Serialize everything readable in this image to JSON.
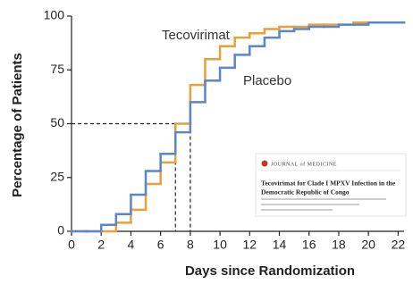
{
  "chart_data": {
    "type": "step",
    "y_label": "Percentage of Patients",
    "x_label": "Days since Randomization",
    "x": [
      0,
      1,
      2,
      3,
      4,
      5,
      6,
      7,
      8,
      9,
      10,
      11,
      12,
      13,
      14,
      15,
      16,
      17,
      18,
      19,
      20,
      21,
      22
    ],
    "series": [
      {
        "name": "Tecovirimat",
        "color": "#e8a03a",
        "values": [
          0,
          0,
          0,
          4,
          10,
          22,
          32,
          50,
          68,
          80,
          86,
          90,
          92,
          94,
          95,
          95,
          96,
          96,
          96,
          97,
          97,
          97,
          97
        ]
      },
      {
        "name": "Placebo",
        "color": "#5b86c9",
        "values": [
          0,
          0,
          3,
          8,
          17,
          28,
          36,
          46,
          60,
          70,
          76,
          82,
          86,
          90,
          93,
          94,
          95,
          95,
          96,
          96,
          97,
          97,
          97
        ]
      }
    ],
    "xlim": [
      0,
      22.4
    ],
    "ylim": [
      0,
      100
    ],
    "xticks": [
      0,
      2,
      4,
      6,
      8,
      10,
      12,
      14,
      16,
      18,
      20,
      22
    ],
    "yticks": [
      0,
      25,
      50,
      75,
      100
    ],
    "reference": {
      "y": 50,
      "x": [
        7,
        8
      ]
    },
    "inset": {
      "journal": "JOURNAL of MEDICINE",
      "headline": [
        "Tecovirimat for Clade I MPXV Infection in the",
        "Democratic Republic of Congo"
      ]
    }
  }
}
